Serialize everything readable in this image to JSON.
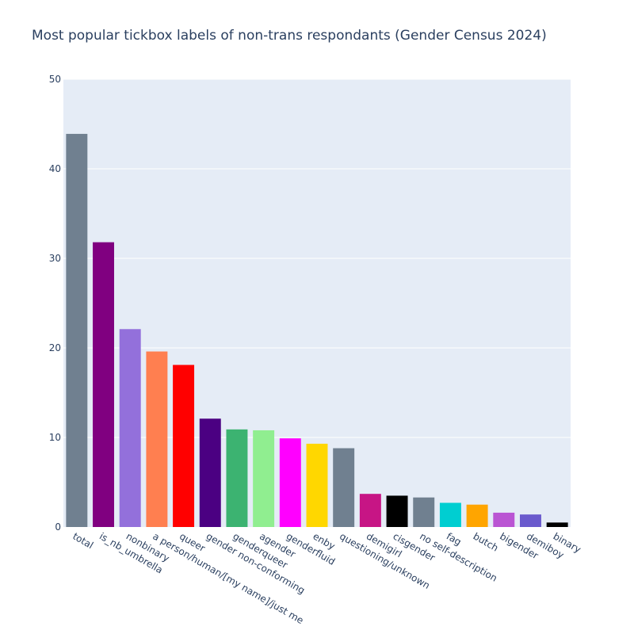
{
  "chart_data": {
    "type": "bar",
    "title": "Most popular tickbox labels of non-trans respondants (Gender Census 2024)",
    "xlabel": "",
    "ylabel": "",
    "ylim": [
      0,
      50
    ],
    "yticks": [
      0,
      10,
      20,
      30,
      40,
      50
    ],
    "grid": true,
    "legend": "none",
    "colors": {
      "plot_background": "#e5ecf6",
      "gridline": "#ffffff",
      "text": "#2a3f5f"
    },
    "categories": [
      "total",
      "is_nb_umbrella",
      "nonbinary",
      "a person/human/[my name]/just me",
      "queer",
      "gender non-conforming",
      "genderqueer",
      "agender",
      "genderfluid",
      "enby",
      "questioning/unknown",
      "demigirl",
      "cisgender",
      "no self-description",
      "fag",
      "butch",
      "bigender",
      "demiboy",
      "binary"
    ],
    "values": [
      43.9,
      31.8,
      22.1,
      19.6,
      18.1,
      12.1,
      10.9,
      10.8,
      9.9,
      9.3,
      8.8,
      3.7,
      3.5,
      3.3,
      2.7,
      2.5,
      1.6,
      1.4,
      0.5
    ],
    "bar_colors": [
      "#708090",
      "#800080",
      "#9370db",
      "#ff7f50",
      "#ff0000",
      "#4b0082",
      "#3cb371",
      "#90ee90",
      "#ff00ff",
      "#ffd700",
      "#708090",
      "#c71585",
      "#000000",
      "#708090",
      "#00ced1",
      "#ffa500",
      "#ba55d3",
      "#6a5acd",
      "#000000"
    ]
  }
}
